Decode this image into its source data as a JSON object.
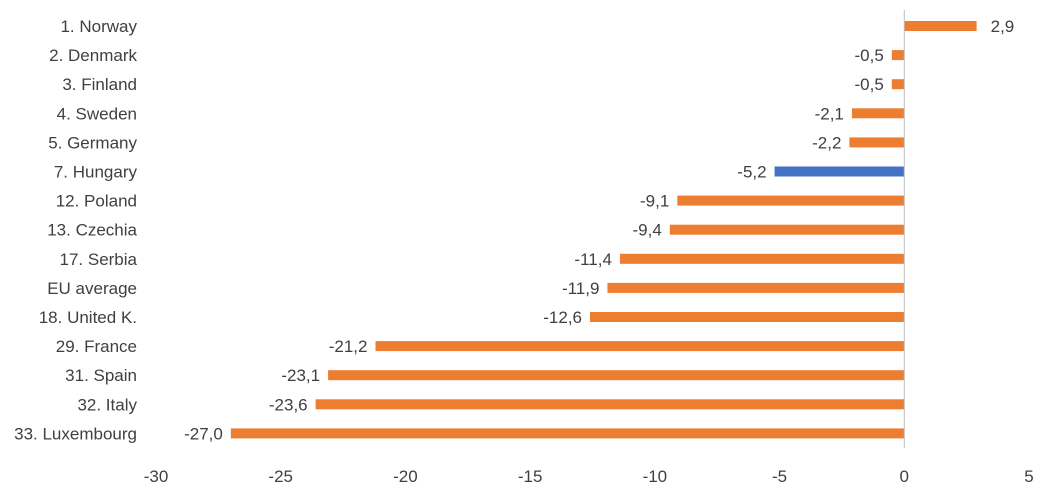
{
  "chart_data": {
    "type": "bar",
    "orientation": "horizontal",
    "title": "",
    "xlabel": "",
    "ylabel": "",
    "categories": [
      "1. Norway",
      "2. Denmark",
      "3. Finland",
      "4. Sweden",
      "5. Germany",
      "7. Hungary",
      "12. Poland",
      "13. Czechia",
      "17. Serbia",
      "EU average",
      "18. United K.",
      "29. France",
      "31. Spain",
      "32. Italy",
      "33. Luxembourg"
    ],
    "values": [
      2.9,
      -0.5,
      -0.5,
      -2.1,
      -2.2,
      -5.2,
      -9.1,
      -9.4,
      -11.4,
      -11.9,
      -12.6,
      -21.2,
      -23.1,
      -23.6,
      -27.0
    ],
    "data_labels": [
      "2,9",
      "-0,5",
      "-0,5",
      "-2,1",
      "-2,2",
      "-5,2",
      "-9,1",
      "-9,4",
      "-11,4",
      "-11,9",
      "-12,6",
      "-21,2",
      "-23,1",
      "-23,6",
      "-27,0"
    ],
    "xlim": [
      -30,
      5
    ],
    "xticks": [
      -30,
      -25,
      -20,
      -15,
      -10,
      -5,
      0,
      5
    ],
    "xtick_labels": [
      "-30",
      "-25",
      "-20",
      "-15",
      "-10",
      "-5",
      "0",
      "5"
    ],
    "highlight_category": "7. Hungary",
    "colors": {
      "bar": "#ED7D31",
      "highlight": "#4472C4",
      "axis": "#BFBFBF"
    },
    "grid": false,
    "legend": "none"
  }
}
